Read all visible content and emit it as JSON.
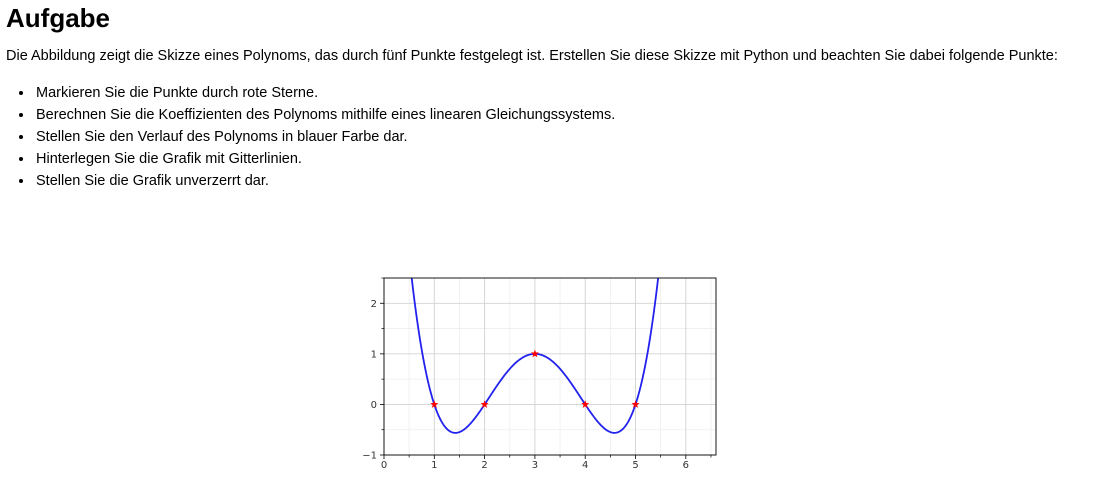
{
  "heading": "Aufgabe",
  "intro": "Die Abbildung zeigt die Skizze eines Polynoms, das durch fünf Punkte festgelegt ist. Erstellen Sie diese Skizze mit Python und beachten Sie dabei folgende Punkte:",
  "bullets": [
    "Markieren Sie die Punkte durch rote Sterne.",
    "Berechnen Sie die Koeffizienten des Polynoms mithilfe eines linearen Gleichungssystems.",
    "Stellen Sie den Verlauf des Polynoms in blauer Farbe dar.",
    "Hinterlegen Sie die Grafik mit Gitterlinien.",
    "Stellen Sie die Grafik unverzerrt dar."
  ],
  "chart_data": {
    "type": "line",
    "xlim": [
      0,
      6.6
    ],
    "ylim": [
      -1,
      2.5
    ],
    "xticks": [
      "0",
      "1",
      "2",
      "3",
      "4",
      "5",
      "6"
    ],
    "yticks": [
      "−1",
      "0",
      "1",
      "2"
    ],
    "grid": true,
    "points": [
      {
        "x": 1,
        "y": 0
      },
      {
        "x": 2,
        "y": 0
      },
      {
        "x": 3,
        "y": 1
      },
      {
        "x": 4,
        "y": 0
      },
      {
        "x": 5,
        "y": 0
      }
    ],
    "line_color": "#2222ee",
    "marker_color": "#ff0000"
  }
}
